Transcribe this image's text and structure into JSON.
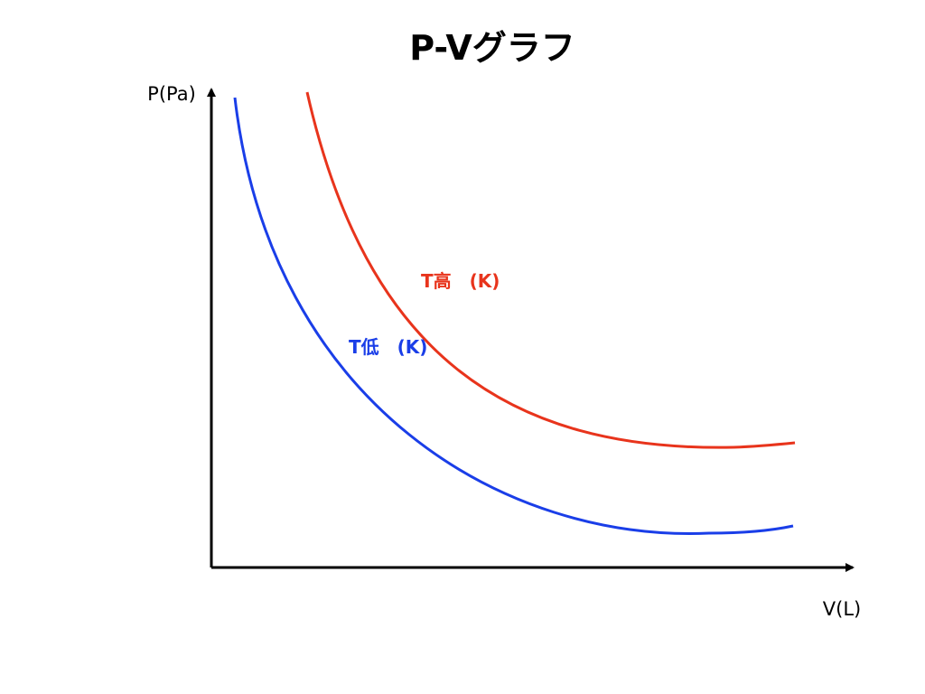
{
  "chart_data": {
    "type": "line",
    "title": "P-Vグラフ",
    "xlabel": "V(L)",
    "ylabel": "P(Pa)",
    "grid": false,
    "legend": "inline labels",
    "series": [
      {
        "name": "T高　(K)",
        "color": "#e8341c"
      },
      {
        "name": "T低　(K)",
        "color": "#1a3ee8"
      }
    ]
  }
}
